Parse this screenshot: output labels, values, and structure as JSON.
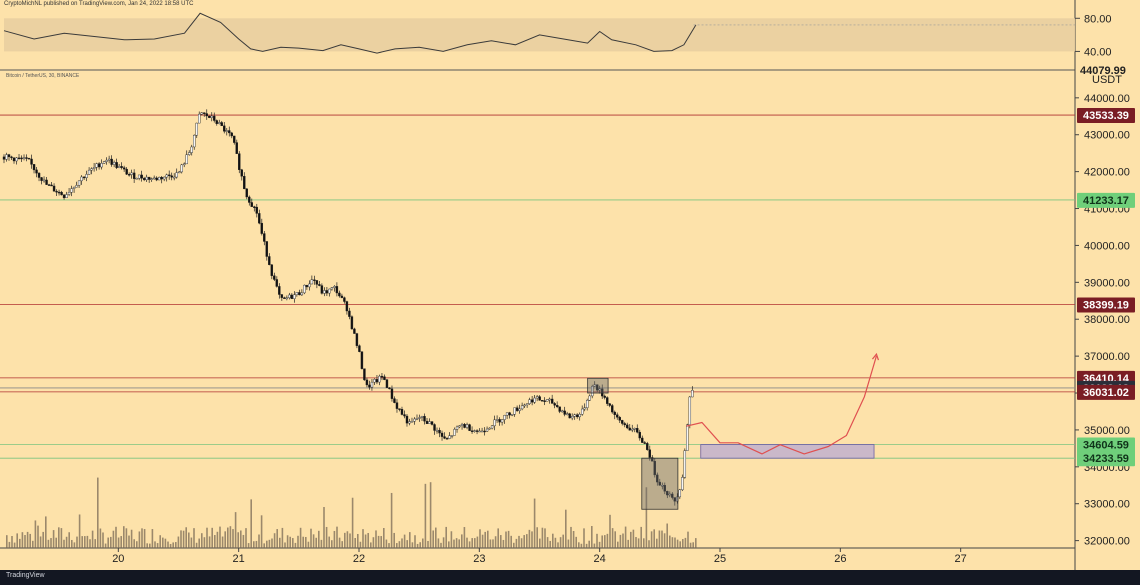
{
  "header": {
    "publish_line": "CryptoMichNL published on TradingView.com, Jan 24, 2022 18:58 UTC",
    "pair_line": "Bitcoin / TetherUS, 30, BINANCE"
  },
  "footer": {
    "brand": "TradingView"
  },
  "chart_data": {
    "type": "candlestick",
    "price_axis": {
      "unit": "USDT",
      "ticks": [
        "44000.00",
        "43000.00",
        "42000.00",
        "41000.00",
        "40000.00",
        "39000.00",
        "38000.00",
        "37000.00",
        "36000.00",
        "35000.00",
        "34000.00",
        "33000.00",
        "32000.00"
      ],
      "range": [
        31800,
        44700
      ],
      "top_partial_label": "44079.99"
    },
    "rsi_axis": {
      "ticks": [
        "80.00",
        "40.00"
      ],
      "range": [
        20,
        90
      ],
      "band": [
        40,
        80
      ]
    },
    "time_axis": {
      "labels": [
        {
          "label": "20",
          "t": 20
        },
        {
          "label": "21",
          "t": 21
        },
        {
          "label": "22",
          "t": 22
        },
        {
          "label": "23",
          "t": 23
        },
        {
          "label": "24",
          "t": 24
        },
        {
          "label": "25",
          "t": 25
        },
        {
          "label": "26",
          "t": 26
        },
        {
          "label": "27",
          "t": 27
        }
      ],
      "range": [
        19.05,
        27.95
      ]
    },
    "levels": [
      {
        "label": "43533.39",
        "price": 43533.39,
        "color": "#b03030",
        "tag_bg": "#7a1d24"
      },
      {
        "label": "41233.17",
        "price": 41233.17,
        "color": "#7bc47f",
        "tag_bg": "#6fcf7a"
      },
      {
        "label": "38399.19",
        "price": 38399.19,
        "color": "#b03030",
        "tag_bg": "#7a1d24"
      },
      {
        "label": "36410.14",
        "price": 36410.14,
        "color": "#b03030",
        "tag_bg": "#7a1d24"
      },
      {
        "label": "36138.12",
        "price": 36138.12,
        "color": "#888888",
        "tag_bg": "#2a2e39"
      },
      {
        "label": "36031.02",
        "price": 36031.02,
        "color": "#b03030",
        "tag_bg": "#7a1d24"
      },
      {
        "label": "34604.59",
        "price": 34604.59,
        "color": "#7bc47f",
        "tag_bg": "#6fcf7a"
      },
      {
        "label": "34233.59",
        "price": 34233.59,
        "color": "#7bc47f",
        "tag_bg": "#6fcf7a"
      }
    ],
    "price_path": [
      [
        19.05,
        42400
      ],
      [
        19.25,
        42300
      ],
      [
        19.4,
        41650
      ],
      [
        19.55,
        41350
      ],
      [
        19.7,
        41850
      ],
      [
        19.9,
        42350
      ],
      [
        20.1,
        41900
      ],
      [
        20.3,
        41800
      ],
      [
        20.5,
        41950
      ],
      [
        20.6,
        42600
      ],
      [
        20.68,
        43600
      ],
      [
        20.8,
        43400
      ],
      [
        20.95,
        42900
      ],
      [
        21.0,
        42200
      ],
      [
        21.06,
        41400
      ],
      [
        21.15,
        40900
      ],
      [
        21.2,
        40200
      ],
      [
        21.28,
        39200
      ],
      [
        21.35,
        38500
      ],
      [
        21.5,
        38700
      ],
      [
        21.62,
        39100
      ],
      [
        21.7,
        38700
      ],
      [
        21.8,
        38850
      ],
      [
        21.9,
        38300
      ],
      [
        21.95,
        37700
      ],
      [
        22.0,
        37100
      ],
      [
        22.06,
        36150
      ],
      [
        22.2,
        36450
      ],
      [
        22.3,
        35700
      ],
      [
        22.42,
        35150
      ],
      [
        22.5,
        35350
      ],
      [
        22.6,
        35150
      ],
      [
        22.72,
        34700
      ],
      [
        22.85,
        35150
      ],
      [
        23.0,
        34950
      ],
      [
        23.15,
        35250
      ],
      [
        23.3,
        35550
      ],
      [
        23.45,
        35850
      ],
      [
        23.6,
        35750
      ],
      [
        23.75,
        35350
      ],
      [
        23.85,
        35450
      ],
      [
        23.95,
        36250
      ],
      [
        24.05,
        35850
      ],
      [
        24.15,
        35250
      ],
      [
        24.3,
        34950
      ],
      [
        24.4,
        34500
      ],
      [
        24.47,
        33700
      ],
      [
        24.55,
        33350
      ],
      [
        24.62,
        33050
      ],
      [
        24.68,
        33550
      ],
      [
        24.72,
        34850
      ],
      [
        24.75,
        35900
      ],
      [
        24.78,
        36200
      ]
    ],
    "rsi_path": [
      [
        19.05,
        65
      ],
      [
        19.3,
        55
      ],
      [
        19.55,
        62
      ],
      [
        19.8,
        58
      ],
      [
        20.05,
        54
      ],
      [
        20.3,
        55
      ],
      [
        20.55,
        62
      ],
      [
        20.68,
        86
      ],
      [
        20.85,
        75
      ],
      [
        21.0,
        55
      ],
      [
        21.1,
        43
      ],
      [
        21.2,
        40
      ],
      [
        21.35,
        45
      ],
      [
        21.5,
        44
      ],
      [
        21.7,
        41
      ],
      [
        21.85,
        48
      ],
      [
        22.0,
        43
      ],
      [
        22.15,
        38
      ],
      [
        22.3,
        43
      ],
      [
        22.5,
        45
      ],
      [
        22.7,
        40
      ],
      [
        22.9,
        48
      ],
      [
        23.1,
        53
      ],
      [
        23.3,
        48
      ],
      [
        23.5,
        60
      ],
      [
        23.7,
        55
      ],
      [
        23.9,
        50
      ],
      [
        24.0,
        64
      ],
      [
        24.1,
        54
      ],
      [
        24.3,
        48
      ],
      [
        24.45,
        40
      ],
      [
        24.6,
        41
      ],
      [
        24.7,
        48
      ],
      [
        24.8,
        72
      ]
    ],
    "rsi_last": [
      24.78,
      72
    ],
    "annotations": {
      "boxes": [
        {
          "name": "top-retest-box",
          "t0": 23.9,
          "t1": 24.07,
          "p0": 36000,
          "p1": 36400,
          "color": "#6b6b6b"
        },
        {
          "name": "bottom-capitulation-box",
          "t0": 24.35,
          "t1": 24.65,
          "p0": 32850,
          "p1": 34233.59,
          "color": "#6b6b6b"
        }
      ],
      "target_zone": {
        "t0": 24.84,
        "t1": 26.28,
        "p0": 34233.59,
        "p1": 34604.59,
        "color": "#b4a7d6"
      },
      "projection": [
        [
          24.72,
          35100
        ],
        [
          24.85,
          35200
        ],
        [
          25.0,
          34650
        ],
        [
          25.15,
          34650
        ],
        [
          25.35,
          34350
        ],
        [
          25.5,
          34600
        ],
        [
          25.7,
          34350
        ],
        [
          25.9,
          34550
        ],
        [
          26.05,
          34850
        ],
        [
          26.2,
          35900
        ],
        [
          26.3,
          37000
        ]
      ]
    }
  }
}
